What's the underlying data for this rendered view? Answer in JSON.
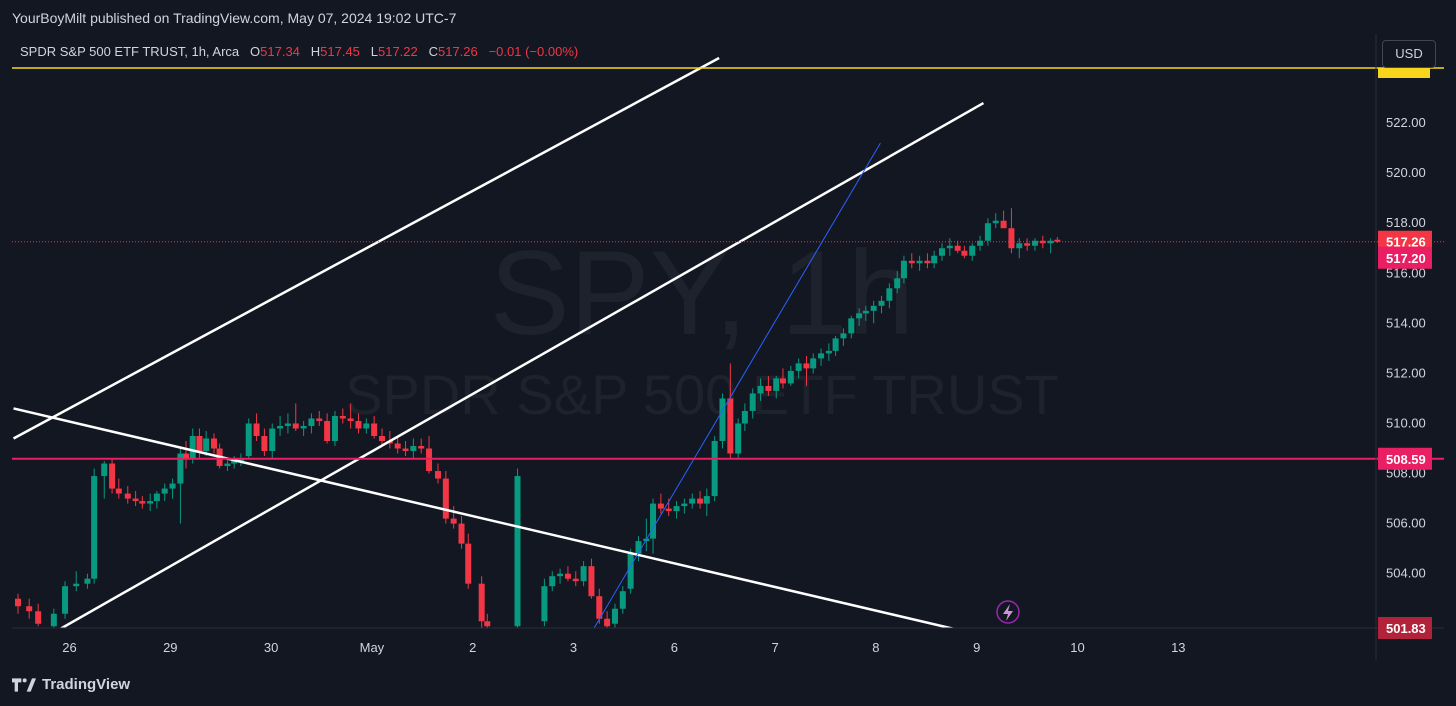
{
  "header": {
    "publisher": "YourBoyMilt published on TradingView.com, May 07, 2024 19:02 UTC-7"
  },
  "legend": {
    "symbol": "SPDR S&P 500 ETF TRUST, 1h, Arca",
    "o_label": "O",
    "o": "517.34",
    "h_label": "H",
    "h": "517.45",
    "l_label": "L",
    "l": "517.22",
    "c_label": "C",
    "c": "517.26",
    "change": "−0.01 (−0.00%)"
  },
  "currency_button": "USD",
  "watermark": {
    "big": "SPY, 1h",
    "small": "SPDR S&P 500 ETF TRUST"
  },
  "footer": {
    "brand": "TradingView"
  },
  "colors": {
    "background": "#131722",
    "up": "#089981",
    "down": "#f23645",
    "level": "#e91e63",
    "trendline": "#ffffff",
    "blue_line": "#2962ff",
    "yellow_line": "#f7d51d",
    "text": "#d1d4dc"
  },
  "chart_data": {
    "type": "candlestick",
    "symbol": "SPY",
    "interval": "1h",
    "ylim": [
      501.83,
      524.2
    ],
    "y_ticks": [
      "504.00",
      "506.00",
      "508.00",
      "510.00",
      "512.00",
      "514.00",
      "516.00",
      "518.00",
      "520.00",
      "522.00"
    ],
    "x_ticks": [
      {
        "label": "26",
        "t": 4.6
      },
      {
        "label": "29",
        "t": 13.6
      },
      {
        "label": "30",
        "t": 22.6
      },
      {
        "label": "May",
        "t": 31.6
      },
      {
        "label": "2",
        "t": 40.6
      },
      {
        "label": "3",
        "t": 49.6
      },
      {
        "label": "6",
        "t": 58.6
      },
      {
        "label": "7",
        "t": 67.6
      },
      {
        "label": "8",
        "t": 76.6
      },
      {
        "label": "9",
        "t": 85.6
      },
      {
        "label": "10",
        "t": 94.6
      },
      {
        "label": "13",
        "t": 103.6
      }
    ],
    "price_labels": [
      {
        "value": "517.26",
        "price": 517.26,
        "color": "#f23645"
      },
      {
        "value": "517.20",
        "price": 516.62,
        "color": "#e91e63"
      },
      {
        "value": "508.59",
        "price": 508.59,
        "color": "#e91e63"
      },
      {
        "value": "501.83",
        "price": 501.83,
        "color": "#b2223a"
      }
    ],
    "horizontal_levels": [
      {
        "price": 508.59,
        "color": "#e91e63",
        "width": 2
      },
      {
        "price": 517.26,
        "color": "#f23645",
        "width": 1,
        "dotted": true
      },
      {
        "price": 524.2,
        "color": "#f7d51d",
        "width": 1.5
      }
    ],
    "trendlines": [
      {
        "t1": -0.4,
        "p1": 509.4,
        "t2": 62.6,
        "p2": 524.6,
        "color": "#ffffff",
        "width": 2.5
      },
      {
        "t1": 3.8,
        "p1": 501.8,
        "t2": 86.2,
        "p2": 522.8,
        "color": "#ffffff",
        "width": 2.5
      },
      {
        "t1": -0.4,
        "p1": 510.6,
        "t2": 83.5,
        "p2": 501.8,
        "color": "#ffffff",
        "width": 2.5
      },
      {
        "t1": 51.4,
        "p1": 501.8,
        "t2": 77.0,
        "p2": 521.2,
        "color": "#2962ff",
        "width": 1
      }
    ],
    "candles": [
      [
        0.0,
        503.0,
        503.2,
        502.4,
        502.7
      ],
      [
        1.0,
        502.7,
        503.0,
        502.2,
        502.5
      ],
      [
        1.8,
        502.5,
        502.8,
        501.9,
        502.0
      ],
      [
        3.2,
        501.9,
        502.6,
        501.83,
        502.4
      ],
      [
        4.2,
        502.4,
        503.7,
        502.2,
        503.5
      ],
      [
        5.2,
        503.5,
        504.1,
        503.3,
        503.6
      ],
      [
        6.2,
        503.6,
        504.0,
        503.4,
        503.8
      ],
      [
        6.8,
        503.8,
        508.2,
        503.6,
        507.9
      ],
      [
        7.7,
        507.9,
        508.5,
        507.0,
        508.4
      ],
      [
        8.4,
        508.4,
        508.6,
        507.2,
        507.4
      ],
      [
        9.0,
        507.4,
        507.8,
        507.0,
        507.2
      ],
      [
        9.8,
        507.2,
        507.5,
        506.8,
        507.0
      ],
      [
        10.5,
        507.0,
        507.3,
        506.7,
        506.9
      ],
      [
        11.1,
        506.9,
        507.1,
        506.6,
        506.8
      ],
      [
        11.8,
        506.8,
        507.2,
        506.5,
        506.9
      ],
      [
        12.4,
        506.9,
        507.3,
        506.6,
        507.2
      ],
      [
        13.1,
        507.2,
        507.6,
        506.9,
        507.4
      ],
      [
        13.8,
        507.4,
        507.8,
        507.0,
        507.6
      ],
      [
        14.5,
        507.6,
        509.0,
        506.0,
        508.8
      ],
      [
        15.0,
        508.8,
        509.3,
        508.2,
        508.6
      ],
      [
        15.6,
        508.6,
        509.8,
        508.4,
        509.5
      ],
      [
        16.2,
        509.5,
        509.8,
        508.6,
        508.9
      ],
      [
        16.8,
        508.9,
        509.7,
        508.7,
        509.4
      ],
      [
        17.5,
        509.4,
        509.6,
        508.8,
        509.0
      ],
      [
        18.0,
        509.0,
        509.2,
        508.2,
        508.3
      ],
      [
        18.7,
        508.3,
        508.6,
        508.1,
        508.4
      ],
      [
        19.3,
        508.4,
        508.7,
        508.2,
        508.5
      ],
      [
        19.9,
        508.5,
        508.8,
        508.3,
        508.6
      ],
      [
        20.6,
        508.7,
        510.2,
        508.6,
        510.0
      ],
      [
        21.3,
        510.0,
        510.4,
        509.3,
        509.5
      ],
      [
        22.0,
        509.5,
        509.8,
        508.7,
        508.9
      ],
      [
        22.7,
        508.9,
        510.0,
        508.6,
        509.8
      ],
      [
        23.4,
        509.8,
        510.3,
        509.5,
        509.9
      ],
      [
        24.1,
        509.9,
        510.4,
        509.6,
        510.0
      ],
      [
        24.8,
        510.0,
        510.8,
        509.7,
        509.8
      ],
      [
        25.5,
        509.8,
        510.1,
        509.5,
        509.9
      ],
      [
        26.2,
        509.9,
        510.4,
        509.6,
        510.2
      ],
      [
        26.9,
        510.2,
        510.5,
        509.9,
        510.1
      ],
      [
        27.6,
        510.1,
        510.4,
        509.2,
        509.3
      ],
      [
        28.3,
        509.3,
        510.5,
        509.1,
        510.3
      ],
      [
        29.0,
        510.3,
        510.6,
        510.0,
        510.2
      ],
      [
        29.7,
        510.2,
        510.8,
        509.8,
        510.1
      ],
      [
        30.4,
        510.1,
        510.4,
        509.6,
        509.8
      ],
      [
        31.1,
        509.8,
        510.2,
        509.6,
        510.0
      ],
      [
        31.8,
        510.0,
        510.3,
        509.4,
        509.5
      ],
      [
        32.5,
        509.5,
        509.8,
        509.1,
        509.3
      ],
      [
        33.2,
        509.3,
        509.7,
        509.0,
        509.2
      ],
      [
        33.9,
        509.2,
        509.5,
        508.8,
        509.0
      ],
      [
        34.6,
        509.0,
        509.3,
        508.7,
        508.9
      ],
      [
        35.3,
        508.9,
        509.4,
        508.6,
        509.1
      ],
      [
        36.0,
        509.1,
        509.4,
        508.8,
        509.0
      ],
      [
        36.7,
        509.0,
        509.5,
        508.0,
        508.1
      ],
      [
        37.5,
        508.1,
        508.4,
        507.6,
        507.8
      ],
      [
        38.2,
        507.8,
        508.1,
        506.0,
        506.2
      ],
      [
        38.9,
        506.2,
        506.7,
        505.8,
        506.0
      ],
      [
        39.6,
        506.0,
        506.3,
        505.0,
        505.2
      ],
      [
        40.2,
        505.2,
        505.6,
        503.4,
        503.6
      ],
      [
        41.4,
        503.6,
        503.9,
        501.83,
        502.1
      ],
      [
        41.9,
        502.1,
        502.4,
        501.83,
        501.9
      ],
      [
        44.6,
        501.9,
        508.2,
        501.83,
        507.9
      ],
      [
        47.0,
        502.1,
        503.8,
        501.9,
        503.5
      ],
      [
        47.7,
        503.5,
        504.1,
        503.3,
        503.9
      ],
      [
        48.4,
        503.9,
        504.2,
        503.6,
        504.0
      ],
      [
        49.1,
        504.0,
        504.3,
        503.7,
        503.8
      ],
      [
        49.8,
        503.8,
        504.1,
        503.5,
        503.7
      ],
      [
        50.5,
        503.7,
        504.5,
        503.5,
        504.3
      ],
      [
        51.2,
        504.3,
        504.6,
        503.0,
        503.1
      ],
      [
        51.9,
        503.1,
        503.4,
        502.0,
        502.2
      ],
      [
        52.6,
        502.2,
        502.5,
        501.83,
        501.9
      ],
      [
        53.3,
        502.0,
        502.8,
        501.83,
        502.6
      ],
      [
        54.0,
        502.6,
        503.5,
        502.4,
        503.3
      ],
      [
        54.7,
        503.4,
        505.0,
        503.2,
        504.8
      ],
      [
        55.4,
        504.8,
        505.5,
        504.5,
        505.3
      ],
      [
        56.1,
        505.3,
        506.2,
        504.9,
        505.4
      ],
      [
        56.7,
        505.4,
        507.0,
        504.8,
        506.8
      ],
      [
        57.4,
        506.8,
        507.2,
        506.4,
        506.6
      ],
      [
        58.1,
        506.6,
        507.0,
        506.3,
        506.5
      ],
      [
        58.8,
        506.5,
        506.9,
        506.2,
        506.7
      ],
      [
        59.5,
        506.7,
        507.0,
        506.4,
        506.8
      ],
      [
        60.2,
        506.8,
        507.2,
        506.6,
        507.0
      ],
      [
        60.9,
        507.0,
        507.3,
        506.6,
        506.8
      ],
      [
        61.5,
        506.8,
        507.4,
        506.3,
        507.1
      ],
      [
        62.2,
        507.1,
        509.5,
        506.9,
        509.3
      ],
      [
        62.9,
        509.3,
        511.2,
        509.0,
        511.0
      ],
      [
        63.6,
        511.0,
        512.4,
        508.6,
        508.8
      ],
      [
        64.3,
        508.8,
        510.2,
        508.6,
        510.0
      ],
      [
        64.9,
        510.0,
        510.8,
        509.7,
        510.5
      ],
      [
        65.6,
        510.5,
        511.4,
        510.2,
        511.2
      ],
      [
        66.3,
        511.2,
        511.8,
        510.9,
        511.5
      ],
      [
        67.0,
        511.5,
        511.9,
        511.1,
        511.3
      ],
      [
        67.7,
        511.3,
        511.9,
        511.0,
        511.8
      ],
      [
        68.3,
        511.8,
        512.2,
        511.4,
        511.6
      ],
      [
        69.0,
        511.6,
        512.3,
        511.5,
        512.1
      ],
      [
        69.7,
        512.1,
        512.6,
        511.8,
        512.4
      ],
      [
        70.4,
        512.4,
        512.7,
        511.5,
        512.2
      ],
      [
        71.0,
        512.2,
        512.8,
        512.0,
        512.6
      ],
      [
        71.7,
        512.6,
        513.0,
        512.3,
        512.8
      ],
      [
        72.4,
        512.8,
        513.2,
        512.5,
        512.9
      ],
      [
        73.0,
        512.9,
        513.5,
        512.7,
        513.4
      ],
      [
        73.7,
        513.4,
        513.8,
        513.1,
        513.6
      ],
      [
        74.4,
        513.6,
        514.3,
        513.4,
        514.2
      ],
      [
        75.1,
        514.2,
        514.6,
        513.9,
        514.4
      ],
      [
        75.7,
        514.4,
        514.7,
        514.1,
        514.5
      ],
      [
        76.4,
        514.5,
        514.9,
        514.0,
        514.7
      ],
      [
        77.1,
        514.7,
        515.1,
        514.4,
        514.9
      ],
      [
        77.8,
        514.9,
        515.6,
        514.6,
        515.4
      ],
      [
        78.5,
        515.4,
        516.1,
        515.2,
        515.8
      ],
      [
        79.1,
        515.8,
        516.7,
        515.6,
        516.5
      ],
      [
        79.8,
        516.5,
        516.8,
        516.2,
        516.4
      ],
      [
        80.5,
        516.4,
        516.7,
        516.1,
        516.5
      ],
      [
        81.2,
        516.5,
        516.8,
        516.2,
        516.4
      ],
      [
        81.8,
        516.4,
        516.9,
        516.2,
        516.7
      ],
      [
        82.5,
        516.7,
        517.2,
        516.5,
        517.0
      ],
      [
        83.2,
        517.0,
        517.4,
        516.7,
        517.1
      ],
      [
        83.9,
        517.1,
        517.3,
        516.8,
        516.9
      ],
      [
        84.5,
        516.9,
        517.1,
        516.6,
        516.7
      ],
      [
        85.2,
        516.7,
        517.2,
        516.5,
        517.1
      ],
      [
        85.9,
        517.1,
        517.5,
        516.9,
        517.3
      ],
      [
        86.6,
        517.3,
        518.2,
        517.1,
        518.0
      ],
      [
        87.3,
        518.0,
        518.4,
        517.8,
        518.1
      ],
      [
        88.0,
        518.1,
        518.5,
        517.9,
        517.8
      ],
      [
        88.7,
        517.8,
        518.6,
        516.8,
        517.0
      ],
      [
        89.4,
        517.0,
        517.4,
        516.6,
        517.2
      ],
      [
        90.1,
        517.2,
        517.4,
        516.9,
        517.1
      ],
      [
        90.8,
        517.1,
        517.4,
        516.9,
        517.3
      ],
      [
        91.5,
        517.3,
        517.5,
        517.0,
        517.2
      ],
      [
        92.2,
        517.2,
        517.4,
        516.8,
        517.3
      ],
      [
        92.8,
        517.34,
        517.45,
        517.22,
        517.26
      ]
    ]
  }
}
